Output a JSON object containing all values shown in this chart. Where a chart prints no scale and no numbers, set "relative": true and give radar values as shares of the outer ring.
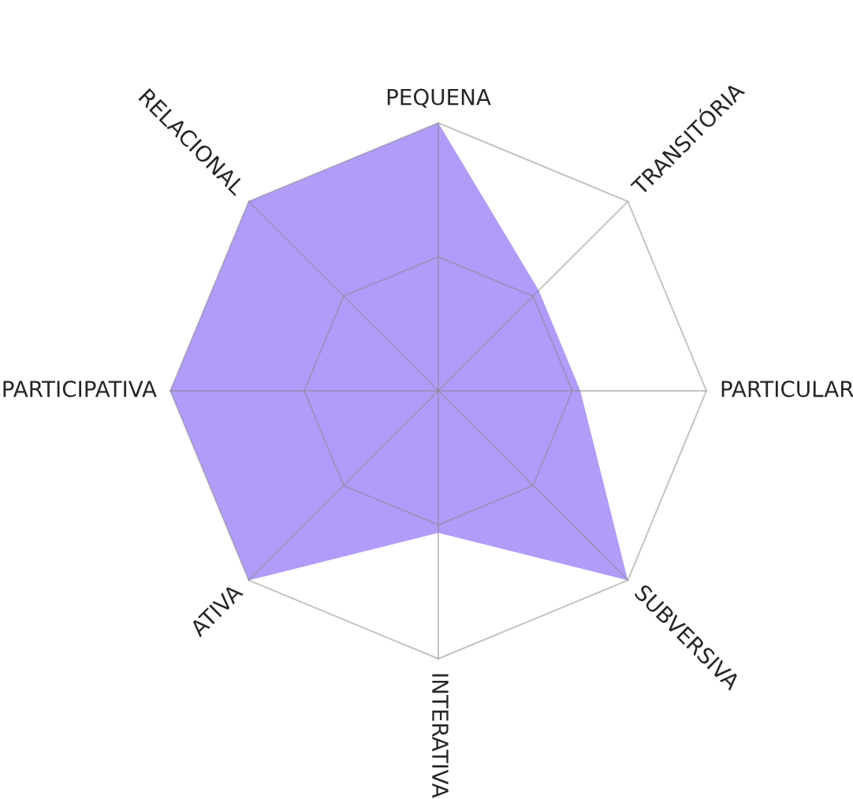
{
  "chart_data": {
    "type": "radar",
    "relative": true,
    "categories": [
      "PEQUENA",
      "TRANSITÓRIA",
      "PARTICULAR",
      "SUBVERSIVA",
      "INTERATIVA",
      "ATIVA",
      "PARTICIPATIVA",
      "RELACIONAL"
    ],
    "series": [
      {
        "color": "#b19cfa",
        "values": [
          1,
          0.53,
          0.53,
          1,
          0.53,
          1,
          1,
          1
        ]
      }
    ]
  }
}
